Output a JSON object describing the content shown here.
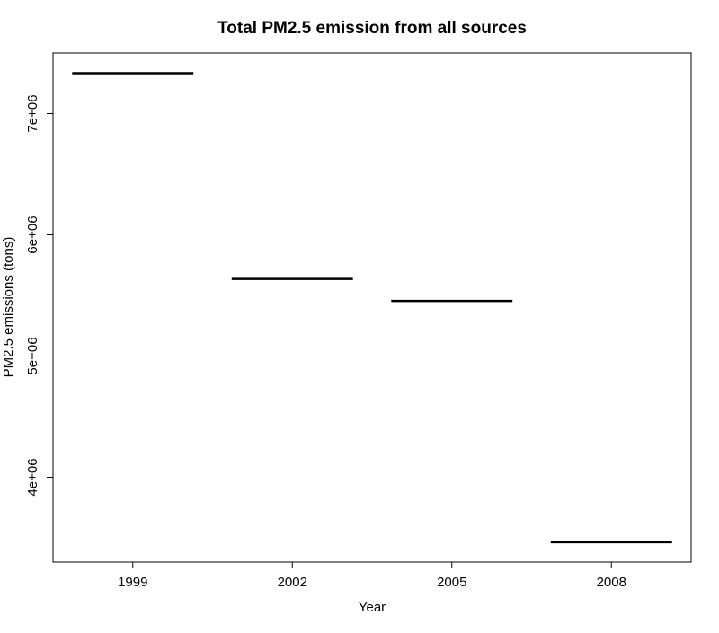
{
  "chart_data": {
    "type": "bar",
    "title": "Total PM2.5 emission from all sources",
    "xlabel": "Year",
    "ylabel": "PM2.5 emissions (tons)",
    "categories": [
      "1999",
      "2002",
      "2005",
      "2008"
    ],
    "values": [
      7332967,
      5635780,
      5454703,
      3464206
    ],
    "ylim": [
      3300000,
      7500000
    ],
    "yticks": [
      4000000,
      5000000,
      6000000,
      7000000
    ],
    "ytick_labels": [
      "4e+06",
      "5e+06",
      "6e+06",
      "7e+06"
    ],
    "grid": false,
    "legend": "none",
    "bar_style": "horizontal-segment",
    "colors": {
      "line": "#000000",
      "axis": "#000000",
      "background": "#ffffff"
    }
  }
}
